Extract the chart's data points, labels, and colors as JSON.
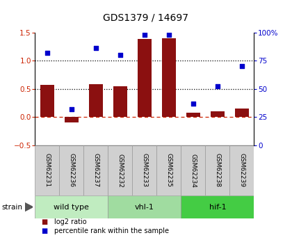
{
  "title": "GDS1379 / 14697",
  "samples": [
    "GSM62231",
    "GSM62236",
    "GSM62237",
    "GSM62232",
    "GSM62233",
    "GSM62235",
    "GSM62234",
    "GSM62238",
    "GSM62239"
  ],
  "log2_ratio": [
    0.57,
    -0.1,
    0.58,
    0.55,
    1.38,
    1.4,
    0.08,
    0.1,
    0.15
  ],
  "percentile_rank": [
    82,
    32,
    86,
    80,
    98,
    98,
    37,
    52,
    70
  ],
  "groups": [
    {
      "label": "wild type",
      "start": 0,
      "end": 3,
      "color": "#c0ecc0"
    },
    {
      "label": "vhl-1",
      "start": 3,
      "end": 6,
      "color": "#a0dca0"
    },
    {
      "label": "hif-1",
      "start": 6,
      "end": 9,
      "color": "#44cc44"
    }
  ],
  "bar_color": "#8B1010",
  "dot_color": "#0000CC",
  "ylim_left": [
    -0.5,
    1.5
  ],
  "ylim_right": [
    0,
    100
  ],
  "yticks_left": [
    -0.5,
    0.0,
    0.5,
    1.0,
    1.5
  ],
  "yticks_right": [
    0,
    25,
    50,
    75,
    100
  ],
  "hlines": [
    0.5,
    1.0
  ],
  "zero_line": 0.0,
  "background_color": "#ffffff",
  "sample_box_color": "#d0d0d0",
  "bar_width": 0.55,
  "legend_labels": [
    "log2 ratio",
    "percentile rank within the sample"
  ],
  "legend_colors": [
    "#8B1010",
    "#0000CC"
  ]
}
